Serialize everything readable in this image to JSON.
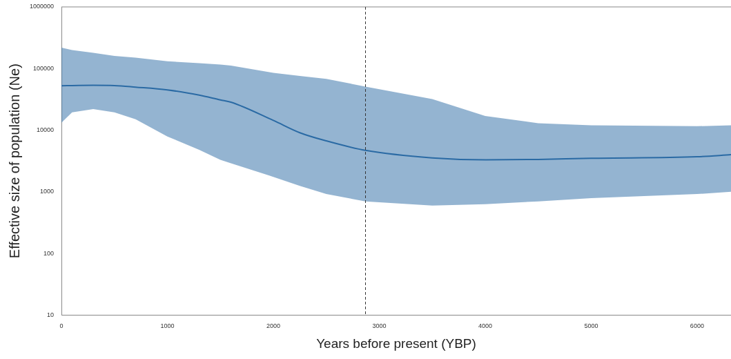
{
  "chart_data": {
    "type": "line",
    "xlabel": "Years before present (YBP)",
    "ylabel": "Effective size of population (Ne)",
    "log": "y",
    "grid": false,
    "legend": false,
    "marker": "none",
    "line_style": "solid",
    "xlim": [
      0,
      6320
    ],
    "xticks": [
      0,
      1000,
      2000,
      3000,
      4000,
      5000,
      6000
    ],
    "ylim": [
      10,
      1000000
    ],
    "yticks": [
      10,
      100,
      1000,
      10000,
      100000,
      1000000
    ],
    "ref_lines": [
      {
        "axis": "x",
        "value": 2870,
        "color": "#333333",
        "line_style": "dashed"
      }
    ],
    "series": [
      {
        "color": "#2a6aa4",
        "x": [
          0,
          100,
          300,
          500,
          700,
          1000,
          1300,
          1500,
          1600,
          2000,
          2250,
          2500,
          2870,
          3500,
          4000,
          4500,
          5000,
          6000,
          6320
        ],
        "values": [
          52500,
          53000,
          53500,
          53000,
          50000,
          45000,
          37000,
          31000,
          28500,
          14400,
          9100,
          6700,
          4700,
          3550,
          3300,
          3350,
          3500,
          3700,
          4000
        ],
        "upper": [
          218000,
          200000,
          180000,
          160000,
          150000,
          131000,
          122000,
          116000,
          112000,
          85000,
          76000,
          68000,
          51000,
          32000,
          17000,
          13000,
          12000,
          11600,
          12000
        ],
        "lower": [
          13200,
          19500,
          22000,
          19500,
          15000,
          7900,
          4800,
          3300,
          2900,
          1750,
          1250,
          920,
          700,
          600,
          630,
          700,
          790,
          920,
          1000
        ]
      }
    ]
  }
}
